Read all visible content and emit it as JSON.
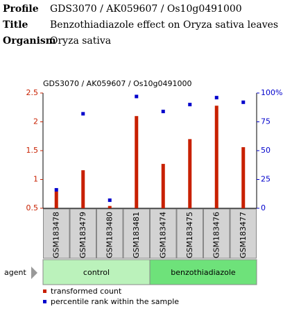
{
  "header": {
    "rows": [
      {
        "label": "Profile",
        "value": "GDS3070 / AK059607 / Os10g0491000"
      },
      {
        "label": "Title",
        "value": "Benzothiadiazole effect on Oryza sativa leaves"
      },
      {
        "label": "Organism",
        "value": "Oryza sativa"
      }
    ]
  },
  "chart_data": {
    "type": "bar",
    "title": "GDS3070 / AK059607 / Os10g0491000",
    "categories": [
      "GSM183478",
      "GSM183479",
      "GSM183480",
      "GSM183481",
      "GSM183474",
      "GSM183475",
      "GSM183476",
      "GSM183477"
    ],
    "series": [
      {
        "name": "transformed count",
        "color": "#c82000",
        "values": [
          0.79,
          1.16,
          0.54,
          2.1,
          1.27,
          1.7,
          2.28,
          1.56
        ]
      },
      {
        "name": "percentile rank within the sample",
        "color": "#0000cc",
        "axis": "y2",
        "values": [
          16,
          82,
          7,
          97,
          84,
          90,
          96,
          92
        ]
      }
    ],
    "ylim": [
      0.5,
      2.5
    ],
    "yticks": [
      0.5,
      1,
      1.5,
      2,
      2.5
    ],
    "y2lim": [
      0,
      100
    ],
    "y2ticks": [
      0,
      25,
      50,
      75,
      {
        "value": 100,
        "label": "100%"
      }
    ],
    "factor": {
      "name": "agent",
      "groups": [
        {
          "label": "control",
          "color": "#bbf2bb"
        },
        {
          "label": "benzothiadiazole",
          "color": "#6ee27a"
        }
      ]
    }
  }
}
